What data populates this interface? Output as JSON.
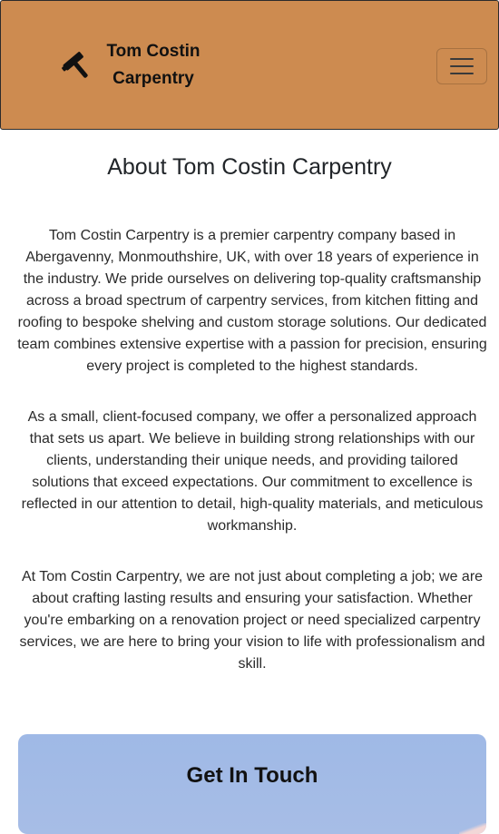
{
  "header": {
    "brand_line1": "Tom Costin",
    "brand_line2": "Carpentry",
    "brand_icon": "hammer-icon",
    "menu_icon": "hamburger-menu-icon",
    "background_color": "#cd8b50"
  },
  "about": {
    "title": "About Tom Costin Carpentry",
    "paragraphs": [
      "Tom Costin Carpentry is a premier carpentry company based in Abergavenny, Monmouthshire, UK, with over 18 years of experience in the industry. We pride ourselves on delivering top-quality craftsmanship across a broad spectrum of carpentry services, from kitchen fitting and roofing to bespoke shelving and custom storage solutions. Our dedicated team combines extensive expertise with a passion for precision, ensuring every project is completed to the highest standards.",
      "As a small, client-focused company, we offer a personalized approach that sets us apart. We believe in building strong relationships with our clients, understanding their unique needs, and providing tailored solutions that exceed expectations. Our commitment to excellence is reflected in our attention to detail, high-quality materials, and meticulous workmanship.",
      "At Tom Costin Carpentry, we are not just about completing a job; we are about crafting lasting results and ensuring your satisfaction. Whether you're embarking on a renovation project or need specialized carpentry services, we are here to bring your vision to life with professionalism and skill."
    ]
  },
  "contact": {
    "title": "Get In Touch",
    "background_color": "#a3bbe6"
  }
}
